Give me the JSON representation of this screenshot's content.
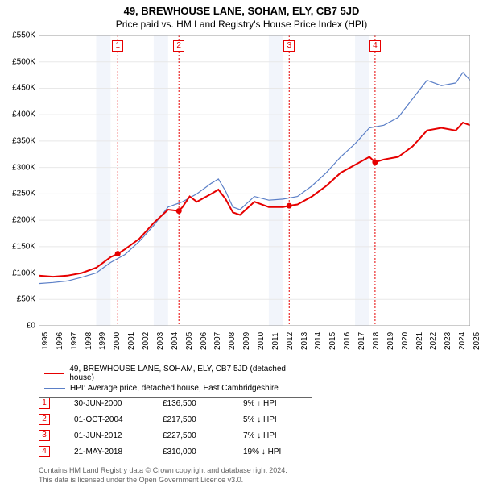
{
  "title": "49, BREWHOUSE LANE, SOHAM, ELY, CB7 5JD",
  "subtitle": "Price paid vs. HM Land Registry's House Price Index (HPI)",
  "colors": {
    "series1": "#e60000",
    "series2": "#5b7fc7",
    "grid": "#e8e8e8",
    "band": "#f2f5fb",
    "marker_line": "#e60000",
    "text": "#000000",
    "footnote": "#666666"
  },
  "y_axis": {
    "min": 0,
    "max": 550000,
    "step": 50000,
    "labels": [
      "£0",
      "£50K",
      "£100K",
      "£150K",
      "£200K",
      "£250K",
      "£300K",
      "£350K",
      "£400K",
      "£450K",
      "£500K",
      "£550K"
    ]
  },
  "x_axis": {
    "min": 1995,
    "max": 2025,
    "labels": [
      "1995",
      "1996",
      "1997",
      "1998",
      "1999",
      "2000",
      "2001",
      "2002",
      "2003",
      "2004",
      "2005",
      "2006",
      "2007",
      "2008",
      "2009",
      "2010",
      "2011",
      "2012",
      "2013",
      "2014",
      "2015",
      "2016",
      "2017",
      "2018",
      "2019",
      "2020",
      "2021",
      "2022",
      "2023",
      "2024",
      "2025"
    ]
  },
  "transactions": [
    {
      "num": "1",
      "date": "30-JUN-2000",
      "price": "£136,500",
      "diff": "9% ↑ HPI",
      "year": 2000.5,
      "value": 136500
    },
    {
      "num": "2",
      "date": "01-OCT-2004",
      "price": "£217,500",
      "diff": "5% ↓ HPI",
      "year": 2004.75,
      "value": 217500
    },
    {
      "num": "3",
      "date": "01-JUN-2012",
      "price": "£227,500",
      "diff": "7% ↓ HPI",
      "year": 2012.42,
      "value": 227500
    },
    {
      "num": "4",
      "date": "21-MAY-2018",
      "price": "£310,000",
      "diff": "19% ↓ HPI",
      "year": 2018.39,
      "value": 310000
    }
  ],
  "legend": {
    "s1": "49, BREWHOUSE LANE, SOHAM, ELY, CB7 5JD (detached house)",
    "s2": "HPI: Average price, detached house, East Cambridgeshire"
  },
  "footnote1": "Contains HM Land Registry data © Crown copyright and database right 2024.",
  "footnote2": "This data is licensed under the Open Government Licence v3.0.",
  "series1": [
    [
      1995,
      95000
    ],
    [
      1996,
      93000
    ],
    [
      1997,
      95000
    ],
    [
      1998,
      100000
    ],
    [
      1999,
      110000
    ],
    [
      2000,
      130000
    ],
    [
      2000.5,
      136500
    ],
    [
      2001,
      145000
    ],
    [
      2002,
      165000
    ],
    [
      2003,
      195000
    ],
    [
      2004,
      220000
    ],
    [
      2004.75,
      217500
    ],
    [
      2005,
      225000
    ],
    [
      2005.5,
      245000
    ],
    [
      2006,
      235000
    ],
    [
      2007,
      250000
    ],
    [
      2007.5,
      258000
    ],
    [
      2008,
      240000
    ],
    [
      2008.5,
      215000
    ],
    [
      2009,
      210000
    ],
    [
      2010,
      235000
    ],
    [
      2011,
      225000
    ],
    [
      2012,
      225000
    ],
    [
      2012.42,
      227500
    ],
    [
      2013,
      230000
    ],
    [
      2014,
      245000
    ],
    [
      2015,
      265000
    ],
    [
      2016,
      290000
    ],
    [
      2017,
      305000
    ],
    [
      2018,
      320000
    ],
    [
      2018.39,
      310000
    ],
    [
      2019,
      315000
    ],
    [
      2020,
      320000
    ],
    [
      2021,
      340000
    ],
    [
      2022,
      370000
    ],
    [
      2023,
      375000
    ],
    [
      2024,
      370000
    ],
    [
      2024.5,
      385000
    ],
    [
      2025,
      380000
    ]
  ],
  "series2": [
    [
      1995,
      80000
    ],
    [
      1996,
      82000
    ],
    [
      1997,
      85000
    ],
    [
      1998,
      92000
    ],
    [
      1999,
      100000
    ],
    [
      2000,
      120000
    ],
    [
      2001,
      135000
    ],
    [
      2002,
      160000
    ],
    [
      2003,
      190000
    ],
    [
      2004,
      225000
    ],
    [
      2005,
      235000
    ],
    [
      2006,
      250000
    ],
    [
      2007,
      270000
    ],
    [
      2007.5,
      278000
    ],
    [
      2008,
      255000
    ],
    [
      2008.5,
      225000
    ],
    [
      2009,
      220000
    ],
    [
      2010,
      245000
    ],
    [
      2011,
      238000
    ],
    [
      2012,
      240000
    ],
    [
      2013,
      245000
    ],
    [
      2014,
      265000
    ],
    [
      2015,
      290000
    ],
    [
      2016,
      320000
    ],
    [
      2017,
      345000
    ],
    [
      2018,
      375000
    ],
    [
      2019,
      380000
    ],
    [
      2020,
      395000
    ],
    [
      2021,
      430000
    ],
    [
      2022,
      465000
    ],
    [
      2023,
      455000
    ],
    [
      2024,
      460000
    ],
    [
      2024.5,
      480000
    ],
    [
      2025,
      465000
    ]
  ],
  "bands": [
    [
      1999,
      2000
    ],
    [
      2003,
      2004
    ],
    [
      2011,
      2012
    ],
    [
      2017,
      2018
    ]
  ],
  "line_width": {
    "s1": 2,
    "s2": 1.2
  }
}
